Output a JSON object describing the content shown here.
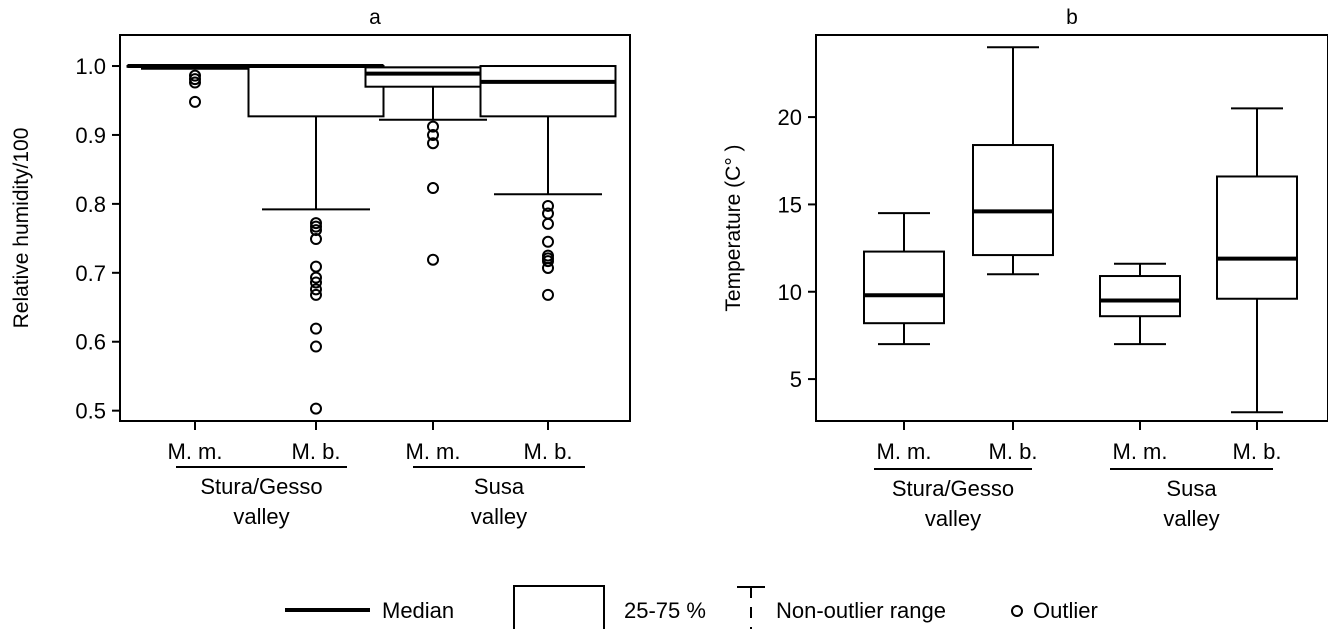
{
  "chart_data": [
    {
      "type": "box",
      "panel": "a",
      "title": "a",
      "ylabel": "Relative humidity/100",
      "ylim": [
        0.485,
        1.045
      ],
      "yticks": [
        0.5,
        0.6,
        0.7,
        0.8,
        0.9,
        1.0
      ],
      "ytick_labels": [
        "0.5",
        "0.6",
        "0.7",
        "0.8",
        "0.9",
        "1.0"
      ],
      "categories": [
        "M. m.",
        "M. b.",
        "M. m.",
        "M. b."
      ],
      "groups": [
        {
          "label_line1": "Stura/Gesso",
          "label_line2": "valley",
          "members": [
            0,
            1
          ]
        },
        {
          "label_line1": "Susa",
          "label_line2": "valley",
          "members": [
            2,
            3
          ]
        }
      ],
      "boxes": [
        {
          "whisker_low": 0.996,
          "q1": 0.999,
          "median": 1.0,
          "q3": 1.0,
          "whisker_high": 1.0,
          "outliers": [
            0.986,
            0.981,
            0.976,
            0.948
          ]
        },
        {
          "whisker_low": 0.792,
          "q1": 0.927,
          "median": 1.0,
          "q3": 1.0,
          "whisker_high": 1.0,
          "outliers": [
            0.772,
            0.767,
            0.762,
            0.749,
            0.709,
            0.693,
            0.686,
            0.676,
            0.668,
            0.619,
            0.593,
            0.503
          ]
        },
        {
          "whisker_low": 0.922,
          "q1": 0.97,
          "median": 0.989,
          "q3": 0.998,
          "whisker_high": 0.998,
          "outliers": [
            0.912,
            0.9,
            0.888,
            0.823,
            0.719
          ]
        },
        {
          "whisker_low": 0.814,
          "q1": 0.927,
          "median": 0.977,
          "q3": 1.0,
          "whisker_high": 1.0,
          "outliers": [
            0.797,
            0.786,
            0.771,
            0.745,
            0.725,
            0.721,
            0.717,
            0.707,
            0.668
          ]
        }
      ]
    },
    {
      "type": "box",
      "panel": "b",
      "title": "b",
      "ylabel": "Temperature (C° )",
      "ylim": [
        2.6,
        24.7
      ],
      "yticks": [
        5,
        10,
        15,
        20
      ],
      "ytick_labels": [
        "5",
        "10",
        "15",
        "20"
      ],
      "categories": [
        "M. m.",
        "M. b.",
        "M. m.",
        "M. b."
      ],
      "groups": [
        {
          "label_line1": "Stura/Gesso",
          "label_line2": "valley",
          "members": [
            0,
            1
          ]
        },
        {
          "label_line1": "Susa",
          "label_line2": "valley",
          "members": [
            2,
            3
          ]
        }
      ],
      "boxes": [
        {
          "whisker_low": 7.0,
          "q1": 8.2,
          "median": 9.8,
          "q3": 12.3,
          "whisker_high": 14.5,
          "outliers": []
        },
        {
          "whisker_low": 11.0,
          "q1": 12.1,
          "median": 14.6,
          "q3": 18.4,
          "whisker_high": 24.0,
          "outliers": []
        },
        {
          "whisker_low": 7.0,
          "q1": 8.6,
          "median": 9.5,
          "q3": 10.9,
          "whisker_high": 11.6,
          "outliers": []
        },
        {
          "whisker_low": 3.1,
          "q1": 9.6,
          "median": 11.9,
          "q3": 16.6,
          "whisker_high": 20.5,
          "outliers": []
        }
      ]
    }
  ],
  "legend": {
    "median_label": "Median",
    "box_label": "25-75 %",
    "range_label": "Non-outlier range",
    "outlier_label": "Outlier"
  }
}
